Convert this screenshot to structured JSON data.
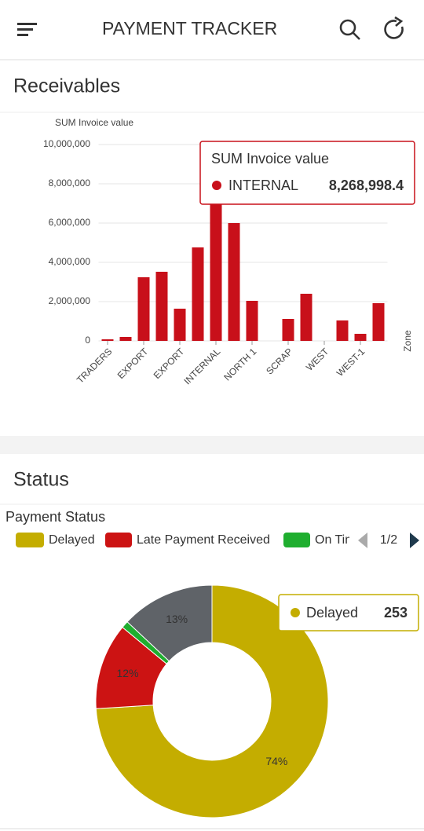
{
  "header": {
    "title": "PAYMENT TRACKER"
  },
  "receivables": {
    "title": "Receivables"
  },
  "status": {
    "title": "Status"
  },
  "chart_data": [
    {
      "type": "bar",
      "y_label": "SUM Invoice value",
      "x_label": "Zone",
      "categories": [
        "TRADERS",
        null,
        "EXPORT",
        null,
        "EXPORT",
        null,
        "INTERNAL",
        null,
        "NORTH 1",
        null,
        "SCRAP",
        null,
        "WEST",
        null,
        "WEST-1",
        null
      ],
      "values": [
        80000,
        200000,
        3240000,
        3520000,
        1640000,
        4760000,
        8268998.4,
        6000000,
        2040000,
        0,
        1120000,
        2400000,
        0,
        1040000,
        360000,
        1920000
      ],
      "color": "#c8101a",
      "ylim": [
        0,
        10000000
      ],
      "yticks": [
        0,
        {
          "value": 2000000,
          "label": "2,000,000"
        },
        {
          "value": 4000000,
          "label": "4,000,000"
        },
        {
          "value": 6000000,
          "label": "6,000,000"
        },
        {
          "value": 8000000,
          "label": "8,000,000"
        },
        {
          "value": 10000000,
          "label": "10,000,000"
        }
      ],
      "grid": true,
      "tooltip": {
        "title": "SUM Invoice value",
        "category": "INTERNAL",
        "value": "8,268,998.4"
      }
    },
    {
      "type": "pie",
      "title": "Payment Status",
      "categories": [
        "Delayed",
        "Late Payment Received",
        "On Time",
        null
      ],
      "values": [
        74,
        12,
        1,
        13
      ],
      "value_labels": [
        "74%",
        "12%",
        null,
        "13%"
      ],
      "colors": [
        "#c4ad00",
        "#cc1313",
        "#1fae2f",
        "#5f6368"
      ],
      "legend_page": "1/2",
      "tooltip": {
        "label": "Delayed",
        "value": 253
      }
    }
  ]
}
